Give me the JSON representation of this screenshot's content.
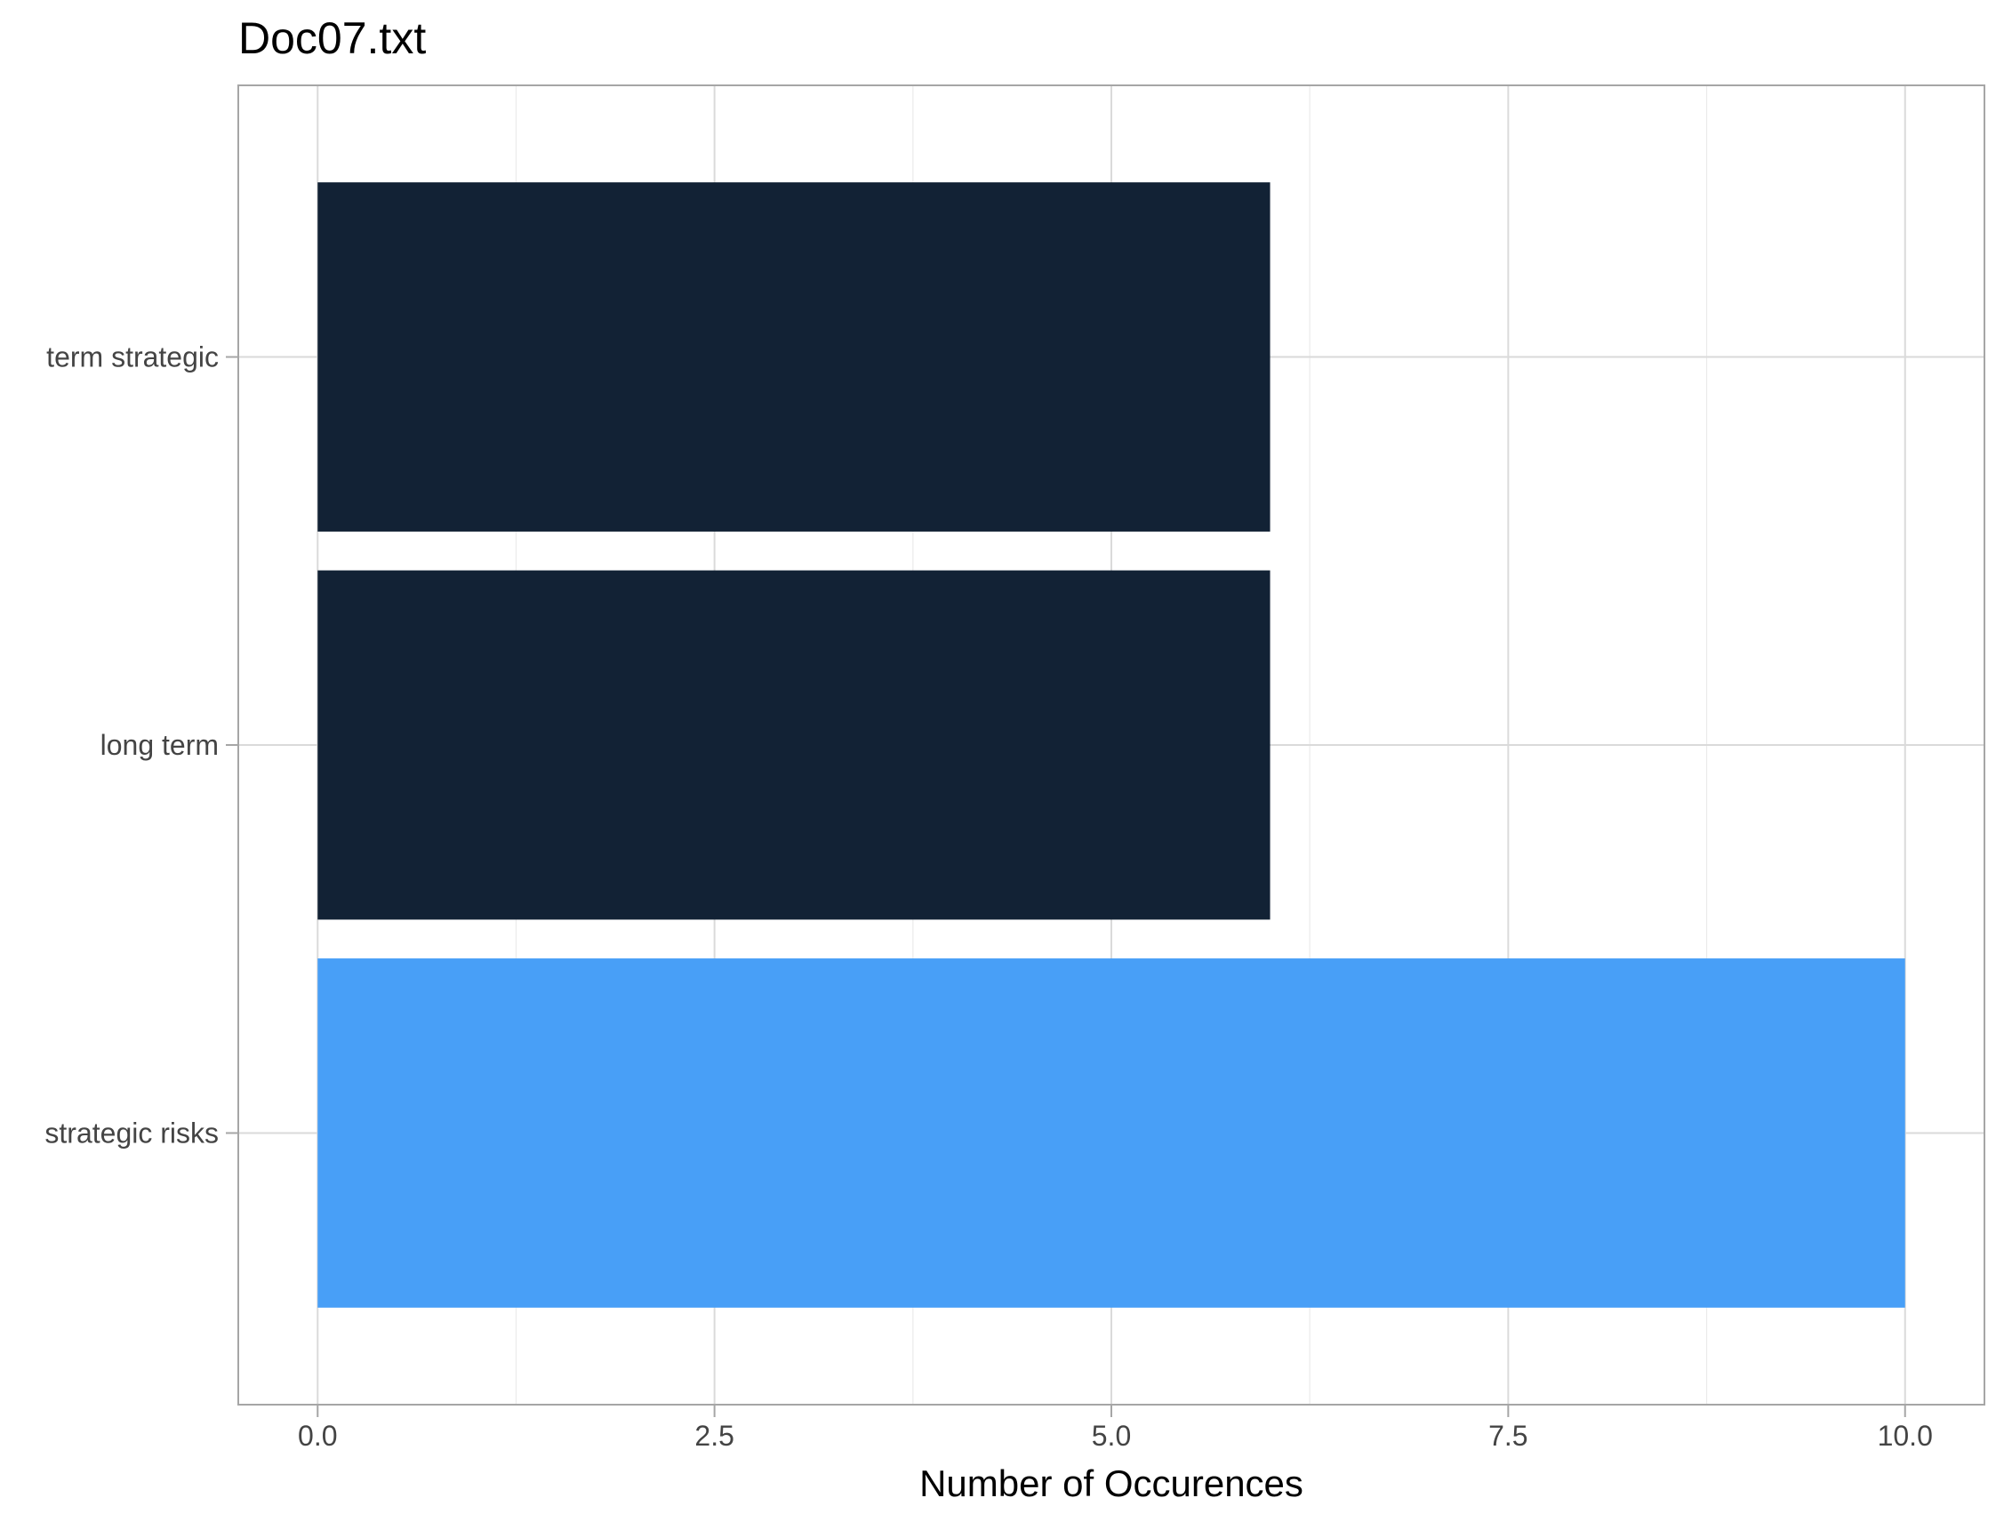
{
  "chart_data": {
    "type": "bar",
    "orientation": "horizontal",
    "title": "Doc07.txt",
    "xlabel": "Number of Occurences",
    "ylabel": "",
    "categories": [
      "strategic risks",
      "long term",
      "term strategic"
    ],
    "values": [
      10,
      6,
      6
    ],
    "bar_colors": [
      "#489FF7",
      "#122235",
      "#122235"
    ],
    "xlim": [
      -0.5,
      10.5
    ],
    "xticks": [
      0,
      2.5,
      5,
      7.5,
      10
    ],
    "xtick_labels": [
      "0.0",
      "2.5",
      "5.0",
      "7.5",
      "10.0"
    ],
    "grid": true,
    "legend": "none"
  }
}
